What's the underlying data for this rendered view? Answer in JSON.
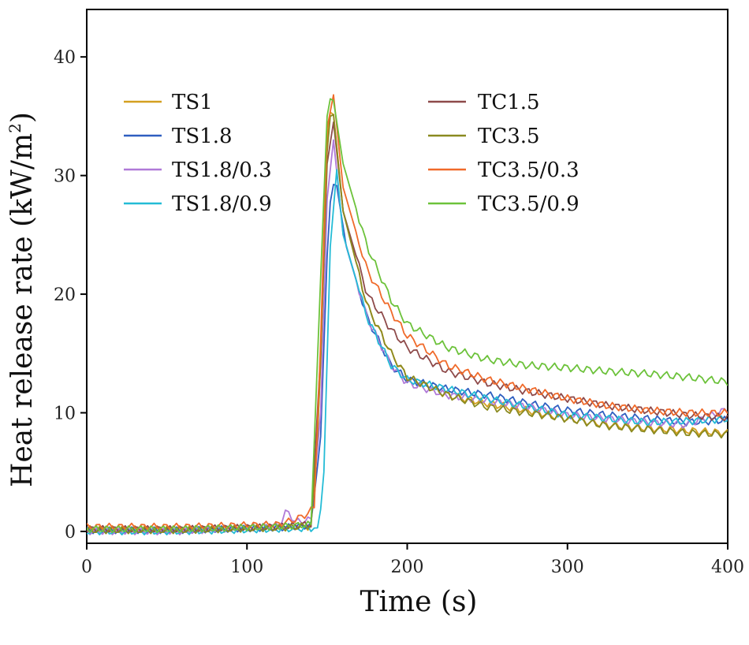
{
  "chart_data": {
    "type": "line",
    "title": "",
    "xlabel": "Time (s)",
    "ylabel": "Heat release rate (kW/m²)",
    "ylabel_main": "Heat release rate (kW/m",
    "ylabel_sup": "2",
    "ylabel_close": ")",
    "xlim": [
      0,
      400
    ],
    "ylim": [
      -1,
      44
    ],
    "xticks": [
      0,
      100,
      200,
      300,
      400
    ],
    "xtick_labels": [
      "0",
      "100",
      "200",
      "300",
      "400"
    ],
    "yticks": [
      0,
      10,
      20,
      30,
      40
    ],
    "ytick_labels": [
      "0",
      "10",
      "20",
      "30",
      "40"
    ],
    "grid": false,
    "legend_position": "top (two columns)",
    "series": [
      {
        "name": "TS1",
        "color": "#d4a020",
        "x": [
          0,
          60,
          120,
          140,
          145,
          150,
          153,
          160,
          175,
          190,
          200,
          225,
          250,
          275,
          300,
          325,
          350,
          375,
          400
        ],
        "y": [
          0.2,
          0.2,
          0.3,
          0.4,
          10,
          33,
          36.5,
          27,
          19,
          15,
          13,
          11.5,
          10.8,
          10.2,
          9.5,
          9,
          8.7,
          8.5,
          8.3
        ]
      },
      {
        "name": "TS1.8",
        "color": "#2f5fc0",
        "x": [
          0,
          60,
          120,
          140,
          146,
          151,
          155,
          162,
          175,
          190,
          200,
          225,
          250,
          275,
          300,
          325,
          350,
          375,
          400
        ],
        "y": [
          0.1,
          0.1,
          0.3,
          0.5,
          8,
          27,
          30,
          24,
          18,
          14,
          12.8,
          12,
          11.5,
          10.8,
          10.2,
          9.8,
          9.5,
          9.2,
          9.4
        ]
      },
      {
        "name": "TS1.8/0.3",
        "color": "#b07ad8",
        "x": [
          0,
          60,
          120,
          125,
          130,
          140,
          146,
          150,
          154,
          160,
          175,
          190,
          200,
          225,
          250,
          275,
          300,
          325,
          350,
          375,
          400
        ],
        "y": [
          0,
          0,
          0.5,
          1.8,
          0.8,
          1,
          10,
          28,
          33,
          25,
          18,
          14,
          12.5,
          11.5,
          11,
          10.5,
          9.8,
          9.5,
          9.2,
          9,
          10.3
        ]
      },
      {
        "name": "TS1.8/0.9",
        "color": "#24bcd6",
        "x": [
          0,
          60,
          120,
          145,
          148,
          152,
          156,
          160,
          175,
          190,
          200,
          225,
          250,
          275,
          300,
          325,
          350,
          375,
          400
        ],
        "y": [
          0,
          0,
          0.2,
          0.3,
          5,
          24,
          30.5,
          25,
          18,
          14,
          12.8,
          12,
          11.2,
          10.5,
          9.8,
          9.5,
          9.2,
          9.3,
          9.5
        ]
      },
      {
        "name": "TC1.5",
        "color": "#8e4a4a",
        "x": [
          0,
          60,
          120,
          140,
          146,
          150,
          154,
          160,
          175,
          190,
          200,
          225,
          250,
          275,
          300,
          325,
          350,
          375,
          400
        ],
        "y": [
          0.2,
          0.2,
          0.4,
          0.6,
          15,
          31,
          34.5,
          27,
          20,
          17,
          15.5,
          13.5,
          12.5,
          11.8,
          11.2,
          10.6,
          10.2,
          9.8,
          9.6
        ]
      },
      {
        "name": "TC3.5",
        "color": "#8a8a20",
        "x": [
          0,
          60,
          120,
          140,
          145,
          150,
          153,
          160,
          175,
          190,
          200,
          225,
          250,
          275,
          300,
          325,
          350,
          375,
          400
        ],
        "y": [
          0.1,
          0.1,
          0.3,
          0.5,
          10,
          32,
          36.5,
          27,
          19,
          15,
          13,
          11.5,
          10.5,
          10,
          9.5,
          8.9,
          8.6,
          8.3,
          8.2
        ]
      },
      {
        "name": "TC3.5/0.3",
        "color": "#f06a2a",
        "x": [
          0,
          60,
          120,
          130,
          138,
          142,
          146,
          150,
          154,
          160,
          175,
          190,
          200,
          225,
          250,
          275,
          300,
          325,
          350,
          375,
          400
        ],
        "y": [
          0.4,
          0.4,
          0.6,
          1,
          1.5,
          2,
          16,
          34,
          36.8,
          29,
          22,
          18.5,
          16.5,
          14,
          12.8,
          12,
          11.2,
          10.6,
          10.2,
          10,
          10
        ]
      },
      {
        "name": "TC3.5/0.9",
        "color": "#6cc23a",
        "x": [
          0,
          60,
          120,
          140,
          145,
          150,
          153,
          160,
          175,
          190,
          200,
          225,
          250,
          275,
          300,
          325,
          350,
          375,
          400
        ],
        "y": [
          0.2,
          0.2,
          0.4,
          0.6,
          18,
          35,
          37.2,
          31,
          24,
          19.5,
          17.5,
          15.5,
          14.5,
          14,
          13.8,
          13.5,
          13.3,
          13,
          12.6
        ]
      }
    ]
  }
}
